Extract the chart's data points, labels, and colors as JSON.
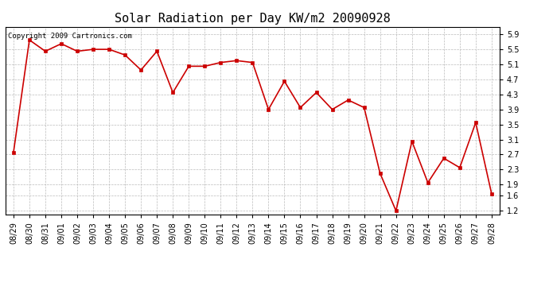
{
  "title": "Solar Radiation per Day KW/m2 20090928",
  "copyright_text": "Copyright 2009 Cartronics.com",
  "labels": [
    "08/29",
    "08/30",
    "08/31",
    "09/01",
    "09/02",
    "09/03",
    "09/04",
    "09/05",
    "09/06",
    "09/07",
    "09/08",
    "09/09",
    "09/10",
    "09/11",
    "09/12",
    "09/13",
    "09/14",
    "09/15",
    "09/16",
    "09/17",
    "09/18",
    "09/19",
    "09/20",
    "09/21",
    "09/22",
    "09/23",
    "09/24",
    "09/25",
    "09/26",
    "09/27",
    "09/28"
  ],
  "values": [
    2.75,
    5.75,
    5.45,
    5.65,
    5.45,
    5.5,
    5.5,
    5.35,
    4.95,
    5.45,
    4.35,
    5.05,
    5.05,
    5.15,
    5.2,
    5.15,
    3.9,
    4.65,
    3.95,
    4.35,
    3.9,
    4.15,
    3.95,
    2.2,
    1.2,
    3.05,
    1.95,
    2.6,
    2.35,
    3.55,
    1.65
  ],
  "line_color": "#cc0000",
  "marker": "s",
  "marker_size": 2.5,
  "line_width": 1.2,
  "ylim_min": 1.1,
  "ylim_max": 6.1,
  "yticks": [
    1.2,
    1.6,
    1.9,
    2.3,
    2.7,
    3.1,
    3.5,
    3.9,
    4.3,
    4.7,
    5.1,
    5.5,
    5.9
  ],
  "grid_color": "#bbbbbb",
  "background_color": "#ffffff",
  "title_fontsize": 11,
  "tick_fontsize": 7,
  "copyright_fontsize": 6.5
}
